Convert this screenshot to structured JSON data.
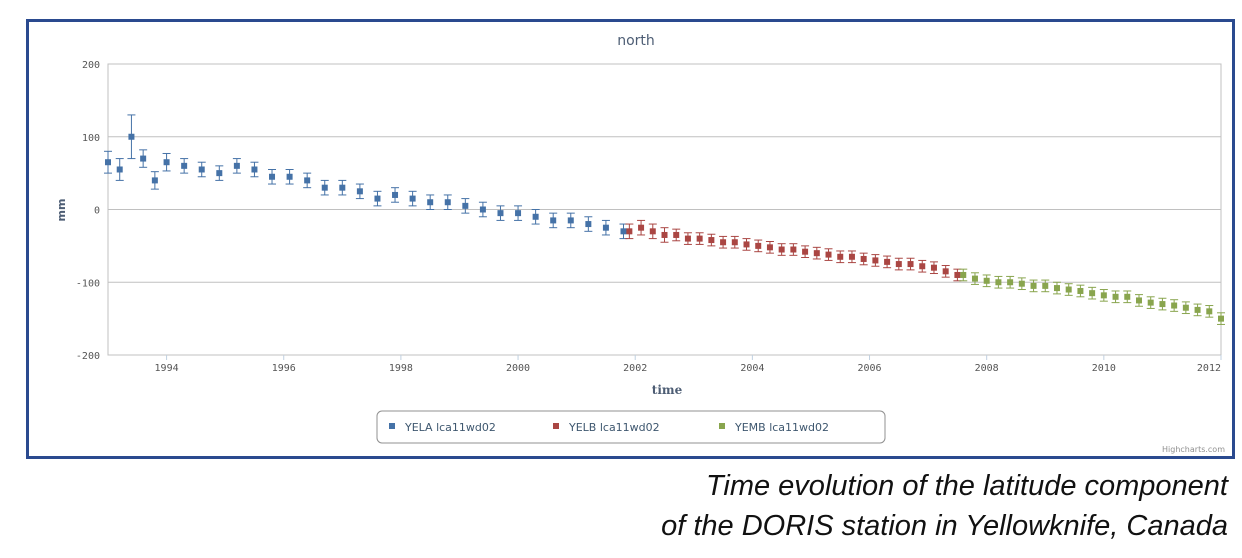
{
  "chart_data": {
    "type": "scatter",
    "title": "north",
    "xlabel": "time",
    "ylabel": "mm",
    "xlim": [
      1993.0,
      2012.0
    ],
    "ylim": [
      -200,
      200
    ],
    "x_ticks": [
      1994,
      1996,
      1998,
      2000,
      2002,
      2004,
      2006,
      2008,
      2010,
      2012
    ],
    "y_ticks": [
      200,
      100,
      0,
      -100,
      -200
    ],
    "grid": true,
    "error_bars": true,
    "legend_position": "bottom-center",
    "credit": "Highcharts.com",
    "series": [
      {
        "name": "YELA lca11wd02",
        "color": "#4572a7",
        "x": [
          1993.0,
          1993.2,
          1993.4,
          1993.6,
          1993.8,
          1994.0,
          1994.3,
          1994.6,
          1994.9,
          1995.2,
          1995.5,
          1995.8,
          1996.1,
          1996.4,
          1996.7,
          1997.0,
          1997.3,
          1997.6,
          1997.9,
          1998.2,
          1998.5,
          1998.8,
          1999.1,
          1999.4,
          1999.7,
          2000.0,
          2000.3,
          2000.6,
          2000.9,
          2001.2,
          2001.5,
          2001.8
        ],
        "y": [
          65,
          55,
          100,
          70,
          40,
          65,
          60,
          55,
          50,
          60,
          55,
          45,
          45,
          40,
          30,
          30,
          25,
          15,
          20,
          15,
          10,
          10,
          5,
          0,
          -5,
          -5,
          -10,
          -15,
          -15,
          -20,
          -25,
          -30
        ],
        "error": [
          15,
          15,
          30,
          12,
          12,
          12,
          10,
          10,
          10,
          10,
          10,
          10,
          10,
          10,
          10,
          10,
          10,
          10,
          10,
          10,
          10,
          10,
          10,
          10,
          10,
          10,
          10,
          10,
          10,
          10,
          10,
          10
        ]
      },
      {
        "name": "YELB lca11wd02",
        "color": "#aa4643",
        "x": [
          2001.9,
          2002.1,
          2002.3,
          2002.5,
          2002.7,
          2002.9,
          2003.1,
          2003.3,
          2003.5,
          2003.7,
          2003.9,
          2004.1,
          2004.3,
          2004.5,
          2004.7,
          2004.9,
          2005.1,
          2005.3,
          2005.5,
          2005.7,
          2005.9,
          2006.1,
          2006.3,
          2006.5,
          2006.7,
          2006.9,
          2007.1,
          2007.3,
          2007.5
        ],
        "y": [
          -30,
          -25,
          -30,
          -35,
          -35,
          -40,
          -40,
          -42,
          -45,
          -45,
          -48,
          -50,
          -52,
          -55,
          -55,
          -58,
          -60,
          -62,
          -65,
          -65,
          -68,
          -70,
          -72,
          -75,
          -75,
          -78,
          -80,
          -85,
          -90
        ],
        "error": [
          10,
          10,
          10,
          10,
          8,
          8,
          8,
          8,
          8,
          8,
          8,
          8,
          8,
          8,
          8,
          8,
          8,
          8,
          8,
          8,
          8,
          8,
          8,
          8,
          8,
          8,
          8,
          8,
          8
        ]
      },
      {
        "name": "YEMB lca11wd02",
        "color": "#89a54e",
        "x": [
          2007.6,
          2007.8,
          2008.0,
          2008.2,
          2008.4,
          2008.6,
          2008.8,
          2009.0,
          2009.2,
          2009.4,
          2009.6,
          2009.8,
          2010.0,
          2010.2,
          2010.4,
          2010.6,
          2010.8,
          2011.0,
          2011.2,
          2011.4,
          2011.6,
          2011.8,
          2012.0
        ],
        "y": [
          -90,
          -95,
          -98,
          -100,
          -100,
          -102,
          -105,
          -105,
          -108,
          -110,
          -112,
          -115,
          -118,
          -120,
          -120,
          -125,
          -128,
          -130,
          -132,
          -135,
          -138,
          -140,
          -150
        ],
        "error": [
          8,
          8,
          8,
          8,
          8,
          8,
          8,
          8,
          8,
          8,
          8,
          8,
          8,
          8,
          8,
          8,
          8,
          8,
          8,
          8,
          8,
          8,
          8
        ]
      }
    ]
  },
  "caption": {
    "line1": "Time evolution of the latitude component",
    "line2": "of the DORIS station in Yellowknife, Canada"
  }
}
